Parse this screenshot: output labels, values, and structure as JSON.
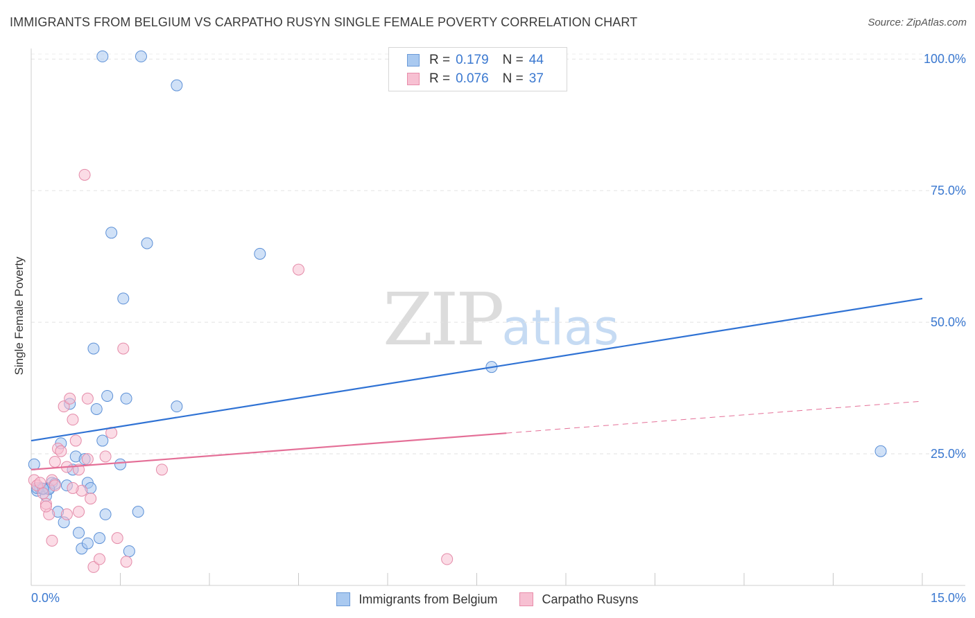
{
  "header": {
    "title": "IMMIGRANTS FROM BELGIUM VS CARPATHO RUSYN SINGLE FEMALE POVERTY CORRELATION CHART",
    "source": "Source: ZipAtlas.com"
  },
  "watermark": {
    "zip": "ZIP",
    "atlas": "atlas"
  },
  "stats_legend": [
    {
      "r_label": "R =",
      "r_value": "0.179",
      "n_label": "N =",
      "n_value": "44",
      "color": "#a9c9f0",
      "border": "#6a9ad8"
    },
    {
      "r_label": "R =",
      "r_value": "0.076",
      "n_label": "N =",
      "n_value": "37",
      "color": "#f7c0d2",
      "border": "#e88ca9"
    }
  ],
  "chart_data": {
    "type": "scatter",
    "title": "IMMIGRANTS FROM BELGIUM VS CARPATHO RUSYN SINGLE FEMALE POVERTY CORRELATION CHART",
    "xlabel": "",
    "ylabel": "Single Female Poverty",
    "xlim": [
      0,
      15
    ],
    "ylim": [
      0,
      102
    ],
    "x_tick_labels": [
      "0.0%",
      "15.0%"
    ],
    "y_ticks": [
      25,
      50,
      75,
      100
    ],
    "y_tick_labels": [
      "25.0%",
      "50.0%",
      "75.0%",
      "100.0%"
    ],
    "grid": true,
    "series": [
      {
        "name": "Immigrants from Belgium",
        "color": "#a9c9f0",
        "stroke": "#5b8fd6",
        "line_color": "#2f72d4",
        "trend": {
          "x": [
            0,
            15
          ],
          "y": [
            27.5,
            54.5
          ],
          "dashed_from": null
        },
        "points": [
          [
            0.05,
            23.0
          ],
          [
            0.1,
            18.0
          ],
          [
            0.15,
            18.5
          ],
          [
            0.2,
            18.3
          ],
          [
            0.25,
            17.0
          ],
          [
            0.3,
            18.5
          ],
          [
            0.35,
            19.5
          ],
          [
            0.4,
            19.3
          ],
          [
            0.45,
            14.0
          ],
          [
            0.5,
            27.0
          ],
          [
            0.55,
            12.0
          ],
          [
            0.6,
            19.0
          ],
          [
            0.65,
            34.5
          ],
          [
            0.7,
            22.0
          ],
          [
            0.75,
            24.5
          ],
          [
            0.8,
            10.0
          ],
          [
            0.85,
            7.0
          ],
          [
            0.9,
            24.0
          ],
          [
            0.95,
            19.5
          ],
          [
            1.0,
            18.5
          ],
          [
            0.95,
            8.0
          ],
          [
            1.05,
            45.0
          ],
          [
            1.1,
            33.5
          ],
          [
            1.15,
            9.0
          ],
          [
            1.2,
            27.5
          ],
          [
            1.25,
            13.5
          ],
          [
            1.28,
            36.0
          ],
          [
            1.35,
            67.0
          ],
          [
            1.5,
            23.0
          ],
          [
            1.55,
            54.5
          ],
          [
            1.6,
            35.5
          ],
          [
            1.65,
            6.5
          ],
          [
            1.8,
            14.0
          ],
          [
            1.95,
            65.0
          ],
          [
            1.2,
            100.5
          ],
          [
            1.85,
            100.5
          ],
          [
            2.45,
            95.0
          ],
          [
            2.45,
            34.0
          ],
          [
            3.85,
            63.0
          ],
          [
            7.75,
            41.5
          ],
          [
            14.3,
            25.5
          ],
          [
            0.1,
            18.5
          ],
          [
            0.3,
            18.3
          ],
          [
            0.2,
            18.4
          ]
        ]
      },
      {
        "name": "Carpatho Rusyns",
        "color": "#f7c0d2",
        "stroke": "#e48aa8",
        "line_color": "#e46f97",
        "trend": {
          "x": [
            0,
            15
          ],
          "y": [
            22.0,
            35.0
          ],
          "dashed_from": 8.0
        },
        "points": [
          [
            0.05,
            20.0
          ],
          [
            0.1,
            19.0
          ],
          [
            0.15,
            19.5
          ],
          [
            0.2,
            17.5
          ],
          [
            0.25,
            15.5
          ],
          [
            0.3,
            13.5
          ],
          [
            0.35,
            20.0
          ],
          [
            0.4,
            23.5
          ],
          [
            0.45,
            26.0
          ],
          [
            0.5,
            25.5
          ],
          [
            0.55,
            34.0
          ],
          [
            0.6,
            22.5
          ],
          [
            0.65,
            35.5
          ],
          [
            0.7,
            31.5
          ],
          [
            0.75,
            27.5
          ],
          [
            0.8,
            14.0
          ],
          [
            0.85,
            18.0
          ],
          [
            0.9,
            78.0
          ],
          [
            0.95,
            24.0
          ],
          [
            1.0,
            16.5
          ],
          [
            1.05,
            3.5
          ],
          [
            1.15,
            5.0
          ],
          [
            1.25,
            24.5
          ],
          [
            1.35,
            29.0
          ],
          [
            1.45,
            9.0
          ],
          [
            1.55,
            45.0
          ],
          [
            1.6,
            4.5
          ],
          [
            2.2,
            22.0
          ],
          [
            0.35,
            8.5
          ],
          [
            0.6,
            13.5
          ],
          [
            0.7,
            18.5
          ],
          [
            0.8,
            22.0
          ],
          [
            0.95,
            35.5
          ],
          [
            0.25,
            15.0
          ],
          [
            0.4,
            19.0
          ],
          [
            4.5,
            60.0
          ],
          [
            7.0,
            5.0
          ]
        ]
      }
    ]
  },
  "bottom_legend": [
    {
      "label": "Immigrants from Belgium",
      "color": "#a9c9f0",
      "border": "#6a9ad8"
    },
    {
      "label": "Carpatho Rusyns",
      "color": "#f7c0d2",
      "border": "#e88ca9"
    }
  ]
}
